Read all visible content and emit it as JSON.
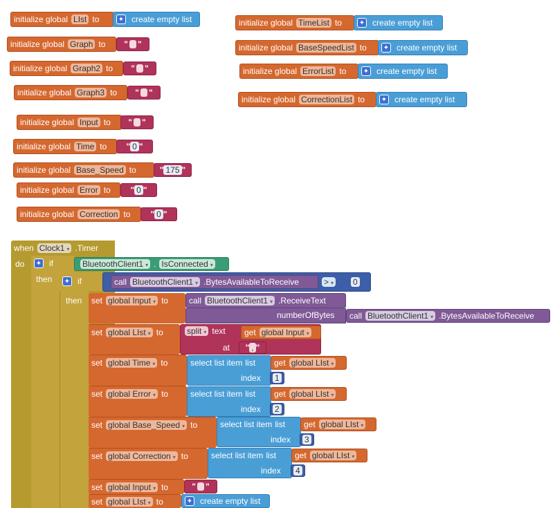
{
  "globals_left": [
    {
      "kw": "initialize global",
      "name": "LIst",
      "to": "to",
      "value_kind": "list",
      "value": "create empty list"
    },
    {
      "kw": "initialize global",
      "name": "Graph",
      "to": "to",
      "value_kind": "text",
      "value": ""
    },
    {
      "kw": "initialize global",
      "name": "Graph2",
      "to": "to",
      "value_kind": "text",
      "value": ""
    },
    {
      "kw": "initialize global",
      "name": "Graph3",
      "to": "to",
      "value_kind": "text",
      "value": ""
    },
    {
      "kw": "initialize global",
      "name": "Input",
      "to": "to",
      "value_kind": "text",
      "value": ""
    },
    {
      "kw": "initialize global",
      "name": "Time",
      "to": "to",
      "value_kind": "text",
      "value": "0"
    },
    {
      "kw": "initialize global",
      "name": "Base_Speed",
      "to": "to",
      "value_kind": "text",
      "value": "175"
    },
    {
      "kw": "initialize global",
      "name": "Error",
      "to": "to",
      "value_kind": "text",
      "value": "0"
    },
    {
      "kw": "initialize global",
      "name": "Correction",
      "to": "to",
      "value_kind": "text",
      "value": "0"
    }
  ],
  "globals_right": [
    {
      "kw": "initialize global",
      "name": "TimeList",
      "to": "to",
      "value": "create empty list"
    },
    {
      "kw": "initialize global",
      "name": "BaseSpeedList",
      "to": "to",
      "value": "create empty list"
    },
    {
      "kw": "initialize global",
      "name": "ErrorList",
      "to": "to",
      "value": "create empty list"
    },
    {
      "kw": "initialize global",
      "name": "CorrectionList",
      "to": "to",
      "value": "create empty list"
    }
  ],
  "event": {
    "when": "when",
    "component": "Clock1",
    "event": ".Timer",
    "do": "do",
    "if1": "if",
    "bt": "BluetoothClient1",
    "isconnected": "IsConnected",
    "then1": "then",
    "if2": "if",
    "call": "call",
    "bytes": ".BytesAvailableToReceive",
    "op": ">",
    "zero": "0",
    "then2": "then",
    "set": "set",
    "to": "to",
    "set_input": "global Input",
    "receive": ".ReceiveText",
    "numberOfBytes": "numberOfBytes",
    "set_list": "global LIst",
    "split": "split",
    "text": "text",
    "get": "get",
    "get_input": "global Input",
    "at": "at",
    "comma": ",",
    "set_time": "global Time",
    "select": "select list item",
    "list": "list",
    "get_list": "global LIst",
    "index": "index",
    "i1": "1",
    "set_error": "global Error",
    "i2": "2",
    "set_base": "global Base_Speed",
    "i3": "3",
    "set_corr": "global Correction",
    "i4": "4",
    "set_input2": "global Input",
    "set_list2": "global LIst",
    "empty_list": "create empty list"
  }
}
